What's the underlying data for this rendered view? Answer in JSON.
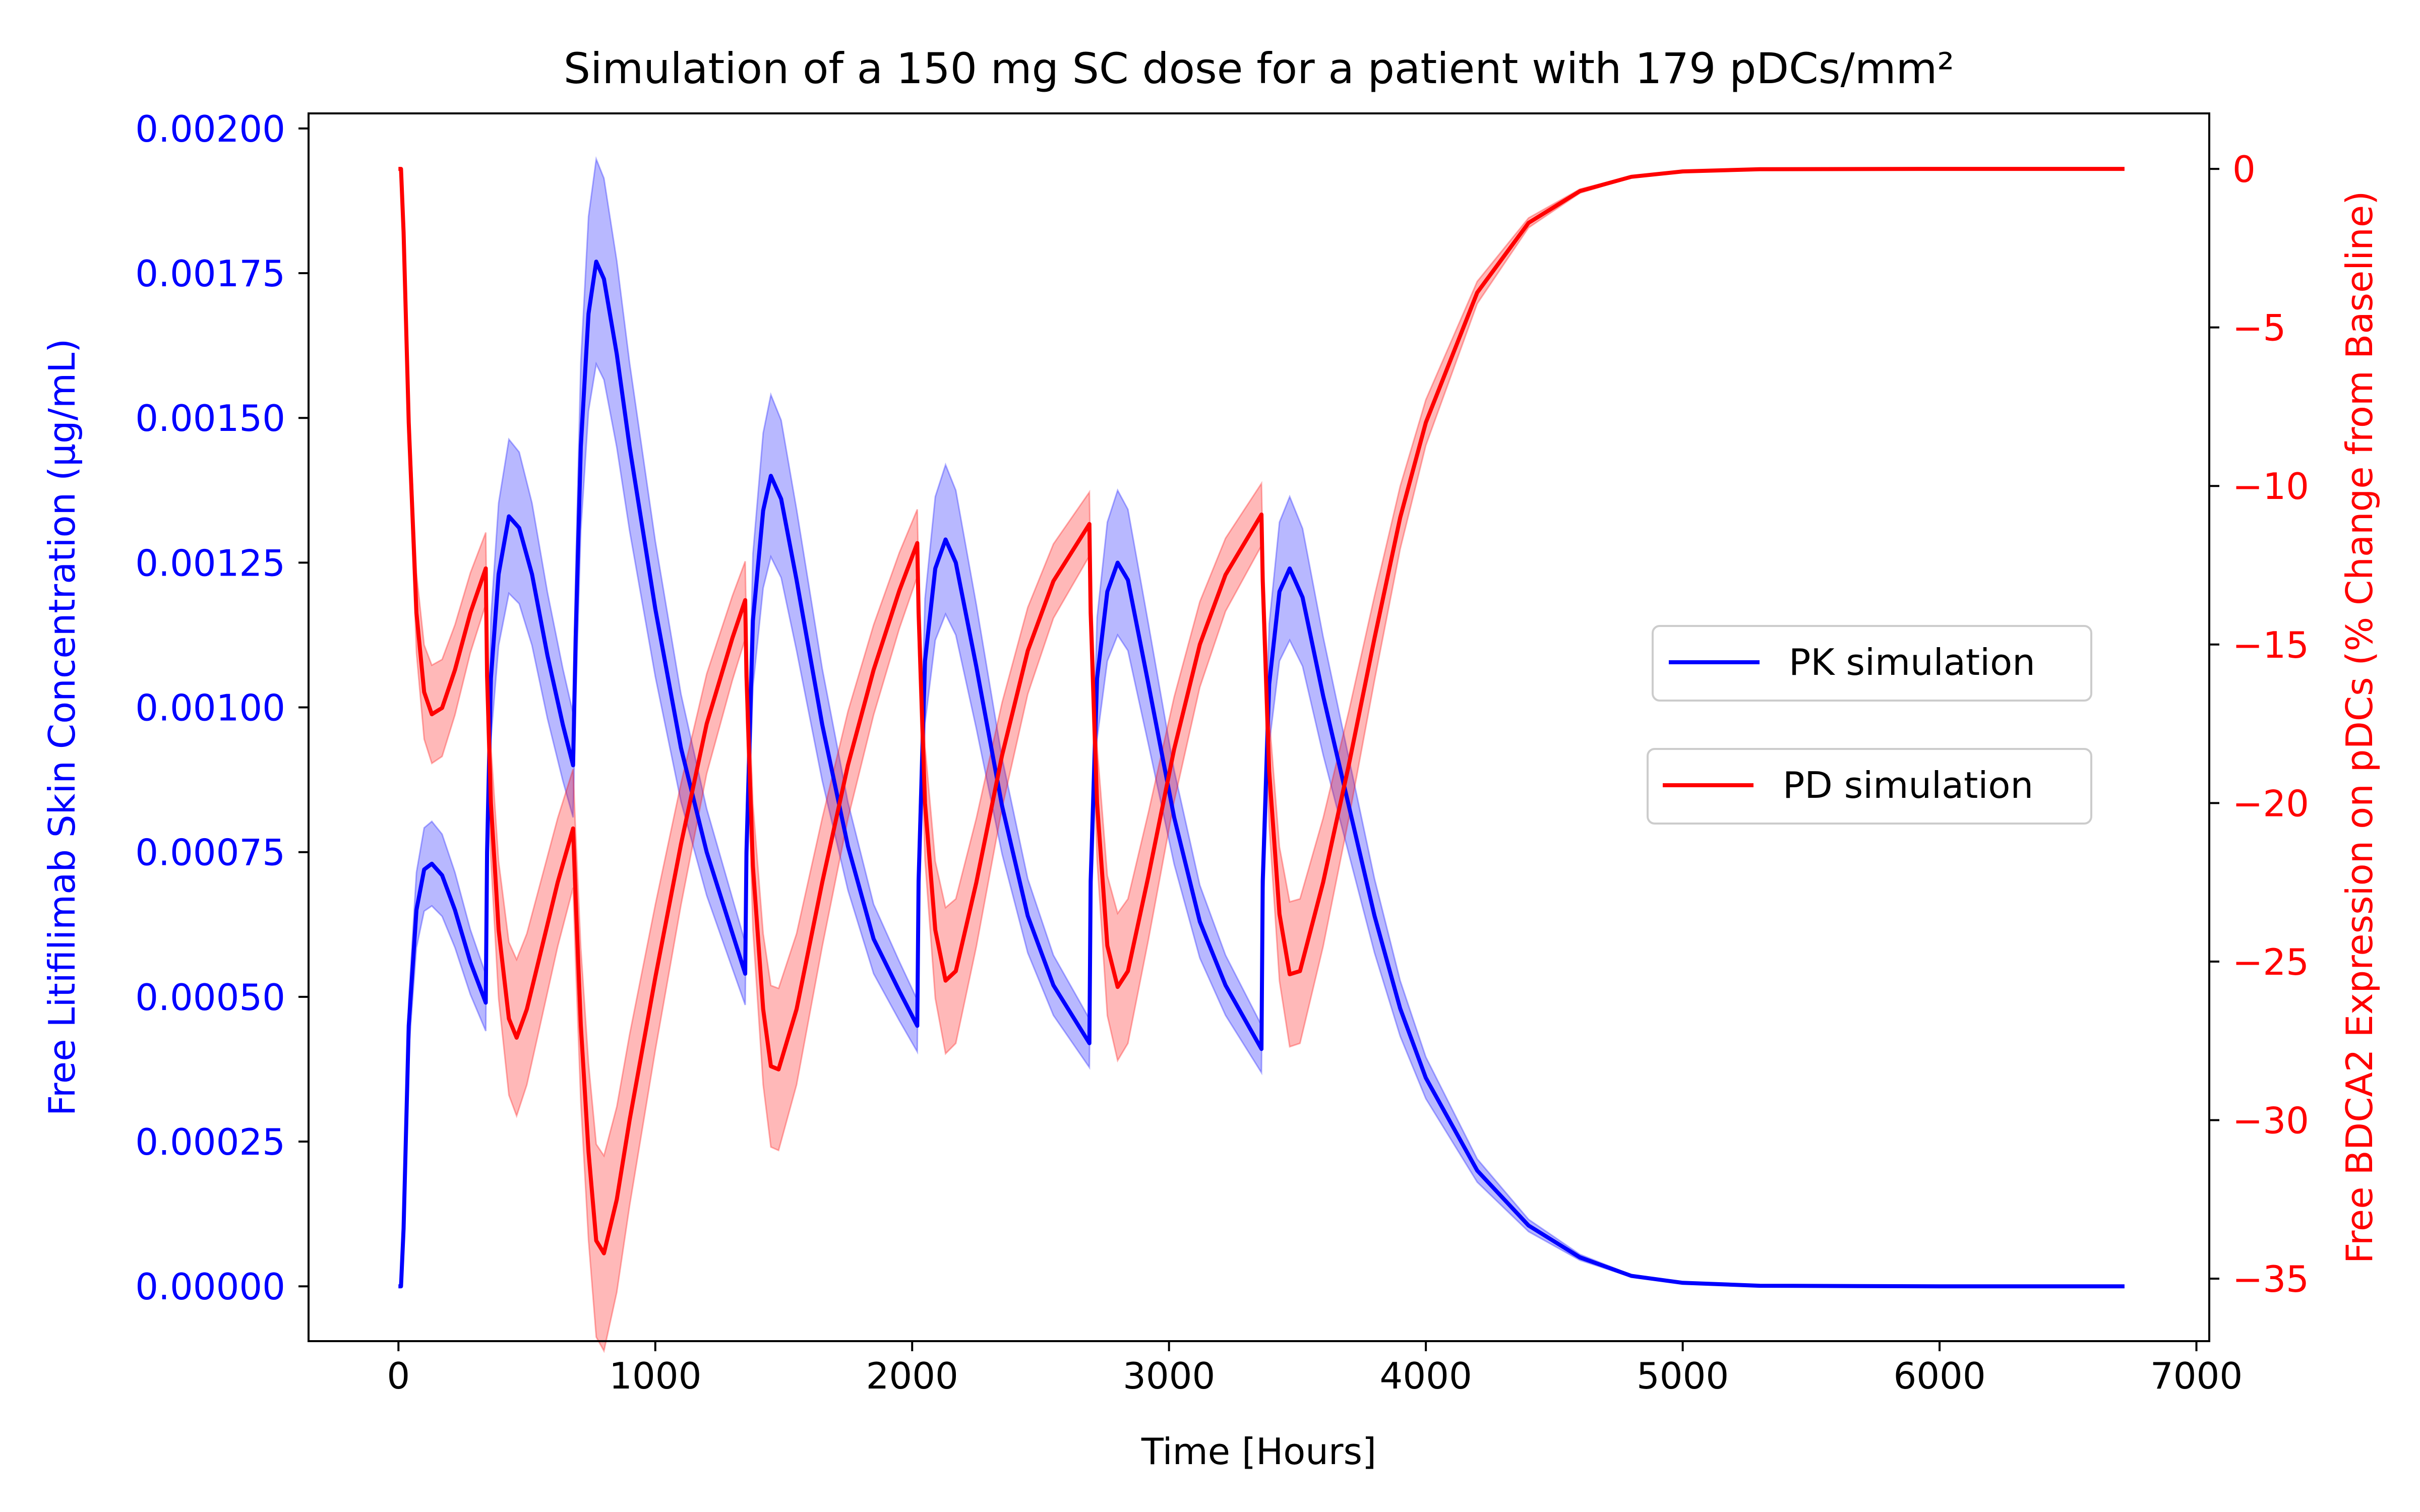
{
  "chart_data": {
    "type": "line",
    "title": "Simulation of a 150 mg SC dose for a patient with 179 pDCs/mm²",
    "xlabel": "Time [Hours]",
    "ylabel_left": "Free Litifilimab Skin Concentration (μg/mL)",
    "ylabel_right": "Free BDCA2 Expression on pDCs (% Change from Baseline)",
    "xlim": [
      -350,
      7050
    ],
    "ylim_left": [
      -9.47e-05,
      0.002026
    ],
    "ylim_right": [
      -36.97,
      1.75
    ],
    "x_ticks": [
      0,
      1000,
      2000,
      3000,
      4000,
      5000,
      6000,
      7000
    ],
    "x_tick_labels": [
      "0",
      "1000",
      "2000",
      "3000",
      "4000",
      "5000",
      "6000",
      "7000"
    ],
    "y_left_ticks": [
      0,
      0.00025,
      0.0005,
      0.00075,
      0.001,
      0.00125,
      0.0015,
      0.00175,
      0.002
    ],
    "y_left_tick_labels": [
      "0.00000",
      "0.00025",
      "0.00050",
      "0.00075",
      "0.00100",
      "0.00125",
      "0.00150",
      "0.00175",
      "0.00200"
    ],
    "y_right_ticks": [
      0,
      -5,
      -10,
      -15,
      -20,
      -25,
      -30,
      -35
    ],
    "y_right_tick_labels": [
      "0",
      "−5",
      "−10",
      "−15",
      "−20",
      "−25",
      "−30",
      "−35"
    ],
    "grid": false,
    "legend": "center-right",
    "series": [
      {
        "name": "PK simulation",
        "axis": "left",
        "color": "#0000ff",
        "band_color": "#0000ff",
        "points": [
          [
            0,
            0
          ],
          [
            10,
            0
          ],
          [
            20,
            0.0001
          ],
          [
            40,
            0.00045
          ],
          [
            70,
            0.00065
          ],
          [
            100,
            0.00072
          ],
          [
            130,
            0.00073
          ],
          [
            170,
            0.00071
          ],
          [
            220,
            0.00065
          ],
          [
            280,
            0.00056
          ],
          [
            340,
            0.00049
          ],
          [
            345,
            0.00075
          ],
          [
            360,
            0.00105
          ],
          [
            390,
            0.00123
          ],
          [
            430,
            0.00133
          ],
          [
            470,
            0.00131
          ],
          [
            520,
            0.00123
          ],
          [
            580,
            0.00109
          ],
          [
            640,
            0.00097
          ],
          [
            680,
            0.0009
          ],
          [
            690,
            0.00112
          ],
          [
            710,
            0.00145
          ],
          [
            740,
            0.00168
          ],
          [
            770,
            0.00177
          ],
          [
            800,
            0.00174
          ],
          [
            850,
            0.00161
          ],
          [
            900,
            0.00145
          ],
          [
            1000,
            0.00117
          ],
          [
            1100,
            0.00093
          ],
          [
            1200,
            0.00075
          ],
          [
            1300,
            0.00061
          ],
          [
            1350,
            0.00054
          ],
          [
            1355,
            0.00075
          ],
          [
            1380,
            0.00115
          ],
          [
            1420,
            0.00134
          ],
          [
            1450,
            0.0014
          ],
          [
            1490,
            0.00136
          ],
          [
            1550,
            0.00122
          ],
          [
            1650,
            0.00097
          ],
          [
            1750,
            0.00076
          ],
          [
            1850,
            0.0006
          ],
          [
            1950,
            0.00051
          ],
          [
            2020,
            0.00045
          ],
          [
            2025,
            0.0007
          ],
          [
            2050,
            0.00108
          ],
          [
            2090,
            0.00124
          ],
          [
            2130,
            0.00129
          ],
          [
            2170,
            0.00125
          ],
          [
            2250,
            0.00107
          ],
          [
            2350,
            0.00083
          ],
          [
            2450,
            0.00064
          ],
          [
            2550,
            0.00052
          ],
          [
            2690,
            0.00042
          ],
          [
            2695,
            0.0007
          ],
          [
            2720,
            0.00105
          ],
          [
            2760,
            0.0012
          ],
          [
            2800,
            0.00125
          ],
          [
            2840,
            0.00122
          ],
          [
            2920,
            0.00104
          ],
          [
            3020,
            0.00081
          ],
          [
            3120,
            0.00063
          ],
          [
            3220,
            0.00052
          ],
          [
            3360,
            0.00041
          ],
          [
            3365,
            0.0007
          ],
          [
            3390,
            0.00104
          ],
          [
            3430,
            0.0012
          ],
          [
            3470,
            0.00124
          ],
          [
            3520,
            0.00119
          ],
          [
            3600,
            0.00102
          ],
          [
            3700,
            0.00083
          ],
          [
            3800,
            0.00064
          ],
          [
            3900,
            0.00048
          ],
          [
            4000,
            0.00036
          ],
          [
            4200,
            0.0002
          ],
          [
            4400,
            0.000105
          ],
          [
            4600,
            5e-05
          ],
          [
            4800,
            1.8e-05
          ],
          [
            5000,
            6e-06
          ],
          [
            5300,
            1e-06
          ],
          [
            6000,
            0
          ],
          [
            6720,
            0
          ]
        ]
      },
      {
        "name": "PD simulation",
        "axis": "right",
        "color": "#ff0000",
        "band_color": "#ff0000",
        "points": [
          [
            0,
            0
          ],
          [
            10,
            0
          ],
          [
            20,
            -2
          ],
          [
            40,
            -8
          ],
          [
            70,
            -14
          ],
          [
            100,
            -16.5
          ],
          [
            130,
            -17.2
          ],
          [
            170,
            -17
          ],
          [
            220,
            -15.8
          ],
          [
            280,
            -14
          ],
          [
            340,
            -12.6
          ],
          [
            345,
            -16
          ],
          [
            360,
            -20
          ],
          [
            390,
            -24
          ],
          [
            430,
            -26.8
          ],
          [
            460,
            -27.4
          ],
          [
            500,
            -26.5
          ],
          [
            560,
            -24.5
          ],
          [
            620,
            -22.5
          ],
          [
            680,
            -20.8
          ],
          [
            690,
            -23
          ],
          [
            710,
            -27
          ],
          [
            740,
            -31
          ],
          [
            770,
            -33.8
          ],
          [
            800,
            -34.2
          ],
          [
            850,
            -32.5
          ],
          [
            900,
            -30
          ],
          [
            1000,
            -25.5
          ],
          [
            1100,
            -21.3
          ],
          [
            1200,
            -17.5
          ],
          [
            1300,
            -14.8
          ],
          [
            1350,
            -13.6
          ],
          [
            1355,
            -16
          ],
          [
            1380,
            -22
          ],
          [
            1420,
            -26.5
          ],
          [
            1450,
            -28.3
          ],
          [
            1480,
            -28.4
          ],
          [
            1550,
            -26.5
          ],
          [
            1650,
            -22.5
          ],
          [
            1750,
            -18.8
          ],
          [
            1850,
            -15.8
          ],
          [
            1950,
            -13.3
          ],
          [
            2020,
            -11.8
          ],
          [
            2025,
            -14
          ],
          [
            2050,
            -20
          ],
          [
            2090,
            -24
          ],
          [
            2130,
            -25.6
          ],
          [
            2170,
            -25.3
          ],
          [
            2250,
            -22.5
          ],
          [
            2350,
            -18.5
          ],
          [
            2450,
            -15.2
          ],
          [
            2550,
            -13
          ],
          [
            2690,
            -11.2
          ],
          [
            2695,
            -14
          ],
          [
            2720,
            -20
          ],
          [
            2760,
            -24.5
          ],
          [
            2800,
            -25.8
          ],
          [
            2840,
            -25.3
          ],
          [
            2920,
            -22.3
          ],
          [
            3020,
            -18.3
          ],
          [
            3120,
            -15
          ],
          [
            3220,
            -12.8
          ],
          [
            3360,
            -10.9
          ],
          [
            3365,
            -13
          ],
          [
            3390,
            -19
          ],
          [
            3430,
            -23.5
          ],
          [
            3470,
            -25.4
          ],
          [
            3510,
            -25.3
          ],
          [
            3600,
            -22.5
          ],
          [
            3700,
            -18.8
          ],
          [
            3800,
            -14.8
          ],
          [
            3900,
            -11
          ],
          [
            4000,
            -8
          ],
          [
            4200,
            -3.9
          ],
          [
            4400,
            -1.7
          ],
          [
            4600,
            -0.7
          ],
          [
            4800,
            -0.25
          ],
          [
            5000,
            -0.08
          ],
          [
            5300,
            -0.01
          ],
          [
            6000,
            0
          ],
          [
            6720,
            0
          ]
        ]
      }
    ]
  }
}
